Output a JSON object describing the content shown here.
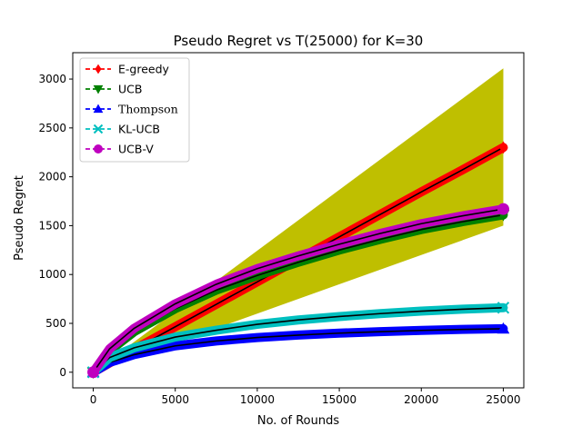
{
  "chart_data": {
    "type": "line",
    "title": "Pseudo Regret vs T(25000) for K=30",
    "xlabel": "No. of Rounds",
    "ylabel": "Pseudo Regret",
    "xlim": [
      -1250,
      26250
    ],
    "ylim": [
      -160,
      3270
    ],
    "xticks": [
      0,
      5000,
      10000,
      15000,
      20000,
      25000
    ],
    "yticks": [
      0,
      500,
      1000,
      1500,
      2000,
      2500,
      3000
    ],
    "legend_position": "top-left",
    "band": {
      "color": "#bfbf00",
      "x": [
        0,
        25000
      ],
      "lower": [
        0,
        1500
      ],
      "upper": [
        0,
        3110
      ]
    },
    "series": [
      {
        "name": "E-greedy",
        "color": "#ff0000",
        "marker": "diamond",
        "x": [
          0,
          1000,
          2500,
          5000,
          7500,
          10000,
          12500,
          15000,
          17500,
          20000,
          22500,
          25000
        ],
        "y": [
          0,
          95,
          235,
          465,
          695,
          925,
          1155,
          1385,
          1615,
          1845,
          2070,
          2300
        ]
      },
      {
        "name": "UCB",
        "color": "#008000",
        "marker": "triangle-down",
        "x": [
          0,
          1000,
          2500,
          5000,
          7500,
          10000,
          12500,
          15000,
          17500,
          20000,
          22500,
          25000
        ],
        "y": [
          0,
          220,
          415,
          650,
          840,
          990,
          1125,
          1250,
          1360,
          1460,
          1540,
          1610
        ]
      },
      {
        "name": "Thompson",
        "color": "#0000ff",
        "marker": "triangle-up",
        "x": [
          0,
          1000,
          2500,
          5000,
          7500,
          10000,
          12500,
          15000,
          17500,
          20000,
          22500,
          25000
        ],
        "y": [
          0,
          100,
          180,
          270,
          320,
          355,
          380,
          400,
          415,
          428,
          438,
          445
        ]
      },
      {
        "name": "KL-UCB",
        "color": "#00bfbf",
        "marker": "x",
        "x": [
          0,
          1000,
          2500,
          5000,
          7500,
          10000,
          12500,
          15000,
          17500,
          20000,
          22500,
          25000
        ],
        "y": [
          0,
          150,
          250,
          360,
          430,
          490,
          535,
          570,
          600,
          625,
          645,
          660
        ]
      },
      {
        "name": "UCB-V",
        "color": "#bf00bf",
        "marker": "circle",
        "x": [
          0,
          1000,
          2500,
          5000,
          7500,
          10000,
          12500,
          15000,
          17500,
          20000,
          22500,
          25000
        ],
        "y": [
          0,
          240,
          450,
          700,
          900,
          1060,
          1190,
          1310,
          1420,
          1520,
          1600,
          1670
        ]
      }
    ]
  }
}
